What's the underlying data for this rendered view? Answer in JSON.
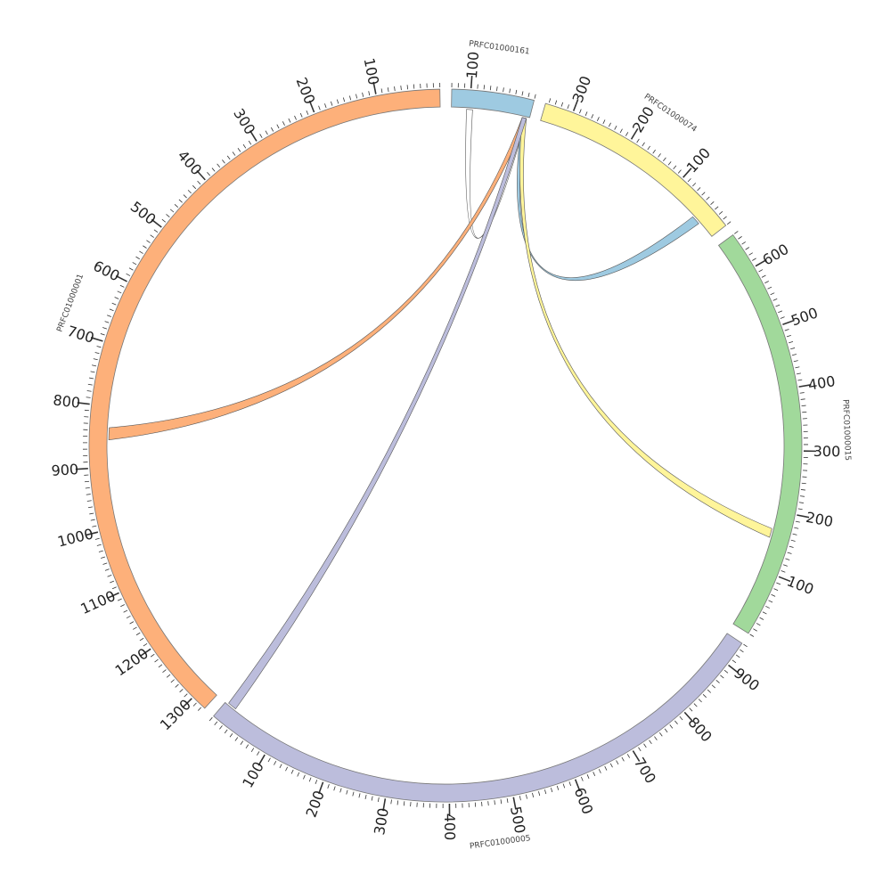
{
  "chart_data": {
    "type": "chord",
    "segments": [
      {
        "id": "PRFC01000161",
        "name": "PRFC01000161",
        "length": 130,
        "color": "#9ecae1",
        "ticks": [
          {
            "v": 100,
            "label": "100"
          }
        ]
      },
      {
        "id": "PRFC01000074",
        "name": "PRFC01000074",
        "length": 345,
        "color": "#fff59a",
        "ticks": [
          {
            "v": 100,
            "label": "100"
          },
          {
            "v": 200,
            "label": "200"
          },
          {
            "v": 300,
            "label": "300"
          }
        ]
      },
      {
        "id": "PRFC01000015",
        "name": "PRFC01000015",
        "length": 660,
        "color": "#a1d99b",
        "ticks": [
          {
            "v": 100,
            "label": "100"
          },
          {
            "v": 200,
            "label": "200"
          },
          {
            "v": 300,
            "label": "300"
          },
          {
            "v": 400,
            "label": "400"
          },
          {
            "v": 500,
            "label": "500"
          },
          {
            "v": 600,
            "label": "600"
          }
        ]
      },
      {
        "id": "PRFC01000005",
        "name": "PRFC01000005",
        "length": 940,
        "color": "#bcbddc",
        "ticks": [
          {
            "v": 100,
            "label": "100"
          },
          {
            "v": 200,
            "label": "200"
          },
          {
            "v": 300,
            "label": "300"
          },
          {
            "v": 400,
            "label": "400"
          },
          {
            "v": 500,
            "label": "500"
          },
          {
            "v": 600,
            "label": "600"
          },
          {
            "v": 700,
            "label": "700"
          },
          {
            "v": 800,
            "label": "800"
          },
          {
            "v": 900,
            "label": "900"
          }
        ]
      },
      {
        "id": "PRFC01000001",
        "name": "PRFC01000001",
        "length": 1325,
        "color": "#fdb07a",
        "ticks": [
          {
            "v": 100,
            "label": "100"
          },
          {
            "v": 200,
            "label": "200"
          },
          {
            "v": 300,
            "label": "300"
          },
          {
            "v": 400,
            "label": "400"
          },
          {
            "v": 500,
            "label": "500"
          },
          {
            "v": 600,
            "label": "600"
          },
          {
            "v": 700,
            "label": "700"
          },
          {
            "v": 800,
            "label": "800"
          },
          {
            "v": 900,
            "label": "900"
          },
          {
            "v": 1000,
            "label": "1000"
          },
          {
            "v": 1100,
            "label": "1100"
          },
          {
            "v": 1200,
            "label": "1200"
          },
          {
            "v": 1300,
            "label": "1300"
          }
        ]
      }
    ],
    "links": [
      {
        "color": "#ffffff",
        "source": {
          "seg": "PRFC01000161",
          "start": 5,
          "end": 12
        },
        "target": {
          "seg": "PRFC01000161",
          "start": 95,
          "end": 105
        }
      },
      {
        "color": "#9ecae1",
        "source": {
          "seg": "PRFC01000161",
          "start": 5,
          "end": 12
        },
        "target": {
          "seg": "PRFC01000074",
          "start": 30,
          "end": 45
        }
      },
      {
        "color": "#fff59a",
        "source": {
          "seg": "PRFC01000161",
          "start": 5,
          "end": 12
        },
        "target": {
          "seg": "PRFC01000015",
          "start": 155,
          "end": 170
        }
      },
      {
        "color": "#fdb07a",
        "source": {
          "seg": "PRFC01000161",
          "start": 5,
          "end": 12
        },
        "target": {
          "seg": "PRFC01000001",
          "start": 835,
          "end": 855
        }
      },
      {
        "color": "#bcbddc",
        "source": {
          "seg": "PRFC01000161",
          "start": 5,
          "end": 12
        },
        "target": {
          "seg": "PRFC01000005",
          "start": 5,
          "end": 20
        }
      }
    ]
  }
}
